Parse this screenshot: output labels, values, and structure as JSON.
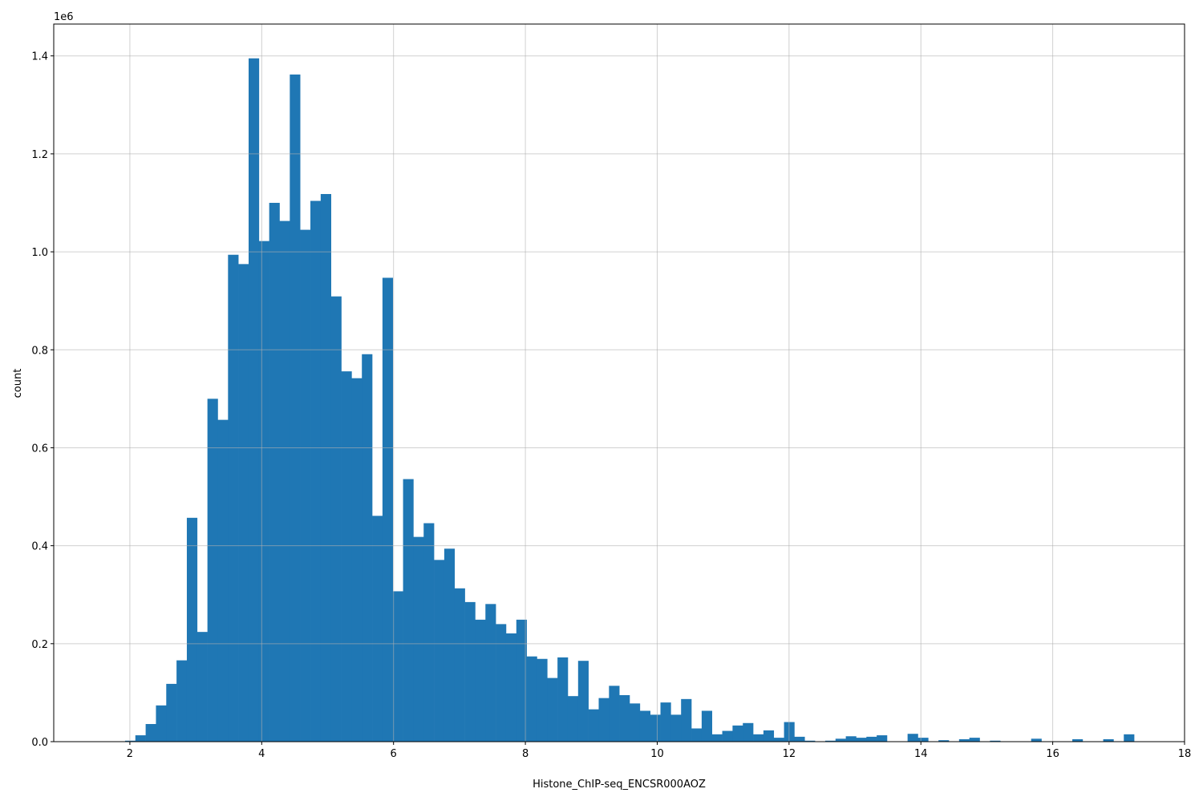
{
  "chart_data": {
    "type": "bar",
    "subtype": "histogram",
    "title": "",
    "xlabel": "Histone_ChIP-seq_ENCSR000AOZ",
    "ylabel": "count",
    "y_offset_label": "1e6",
    "y_scale": 1000000,
    "xlim": [
      0.845,
      18.0
    ],
    "ylim": [
      0,
      1.465
    ],
    "x_ticks": [
      2,
      4,
      6,
      8,
      10,
      12,
      14,
      16,
      18
    ],
    "x_tick_labels": [
      "2",
      "4",
      "6",
      "8",
      "10",
      "12",
      "14",
      "16",
      "18"
    ],
    "y_ticks": [
      0,
      0.2,
      0.4,
      0.6,
      0.8,
      1.0,
      1.2,
      1.4
    ],
    "y_tick_labels": [
      "0.0",
      "0.2",
      "0.4",
      "0.6",
      "0.8",
      "1.0",
      "1.2",
      "1.4"
    ],
    "grid": true,
    "legend": "none",
    "bar_color": "#1f77b4",
    "grid_color": "#b0b0b0",
    "bin_start": 1.927,
    "bin_width": 0.1562,
    "counts": [
      0.002,
      0.013,
      0.036,
      0.074,
      0.118,
      0.166,
      0.457,
      0.224,
      0.7,
      0.657,
      0.994,
      0.975,
      1.395,
      1.022,
      1.1,
      1.063,
      1.362,
      1.045,
      1.104,
      1.118,
      0.909,
      0.756,
      0.742,
      0.791,
      0.461,
      0.947,
      0.307,
      0.536,
      0.418,
      0.446,
      0.371,
      0.394,
      0.313,
      0.285,
      0.249,
      0.281,
      0.24,
      0.221,
      0.249,
      0.174,
      0.169,
      0.13,
      0.172,
      0.093,
      0.165,
      0.066,
      0.089,
      0.114,
      0.095,
      0.078,
      0.063,
      0.055,
      0.08,
      0.055,
      0.087,
      0.027,
      0.063,
      0.015,
      0.022,
      0.033,
      0.038,
      0.015,
      0.023,
      0.008,
      0.04,
      0.01,
      0.002,
      0,
      0.002,
      0.006,
      0.011,
      0.008,
      0.01,
      0.013,
      0,
      0,
      0.016,
      0.008,
      0,
      0.003,
      0,
      0.005,
      0.008,
      0,
      0.002,
      0,
      0,
      0,
      0.006,
      0,
      0,
      0,
      0.005,
      0,
      0,
      0.005,
      0,
      0.015
    ]
  }
}
